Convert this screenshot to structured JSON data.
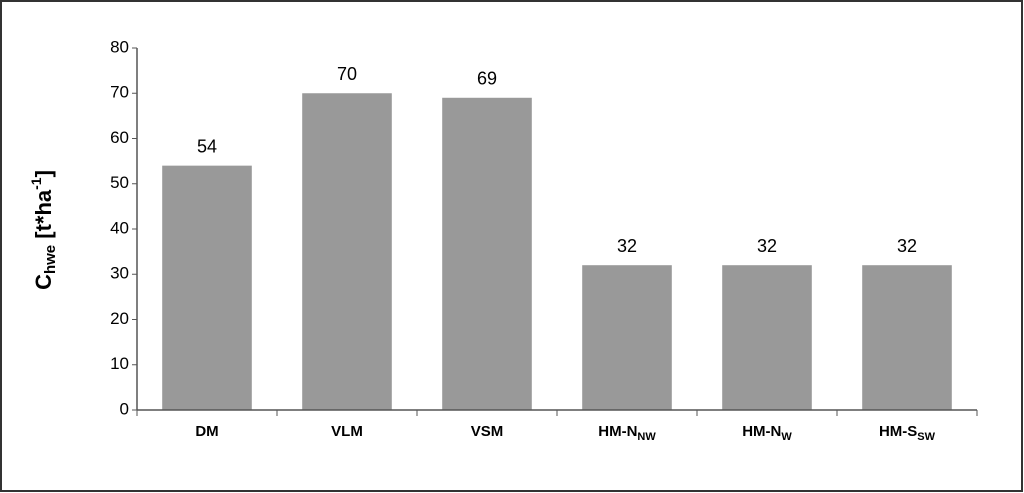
{
  "chart_data": {
    "type": "bar",
    "ylabel": [
      "C",
      "hwe",
      " [t*ha",
      "-1",
      "]"
    ],
    "categories": [
      "DM",
      "VLM",
      "VSM",
      {
        "text": "HM-N",
        "sub": "NW"
      },
      {
        "text": "HM-N",
        "sub": "W"
      },
      {
        "text": "HM-S",
        "sub": "SW"
      }
    ],
    "values": [
      54,
      70,
      69,
      32,
      32,
      32
    ],
    "color": "#999999",
    "ylim": [
      0,
      80
    ],
    "yticks": [
      0,
      10,
      20,
      30,
      40,
      50,
      60,
      70,
      80
    ],
    "grid": false
  }
}
